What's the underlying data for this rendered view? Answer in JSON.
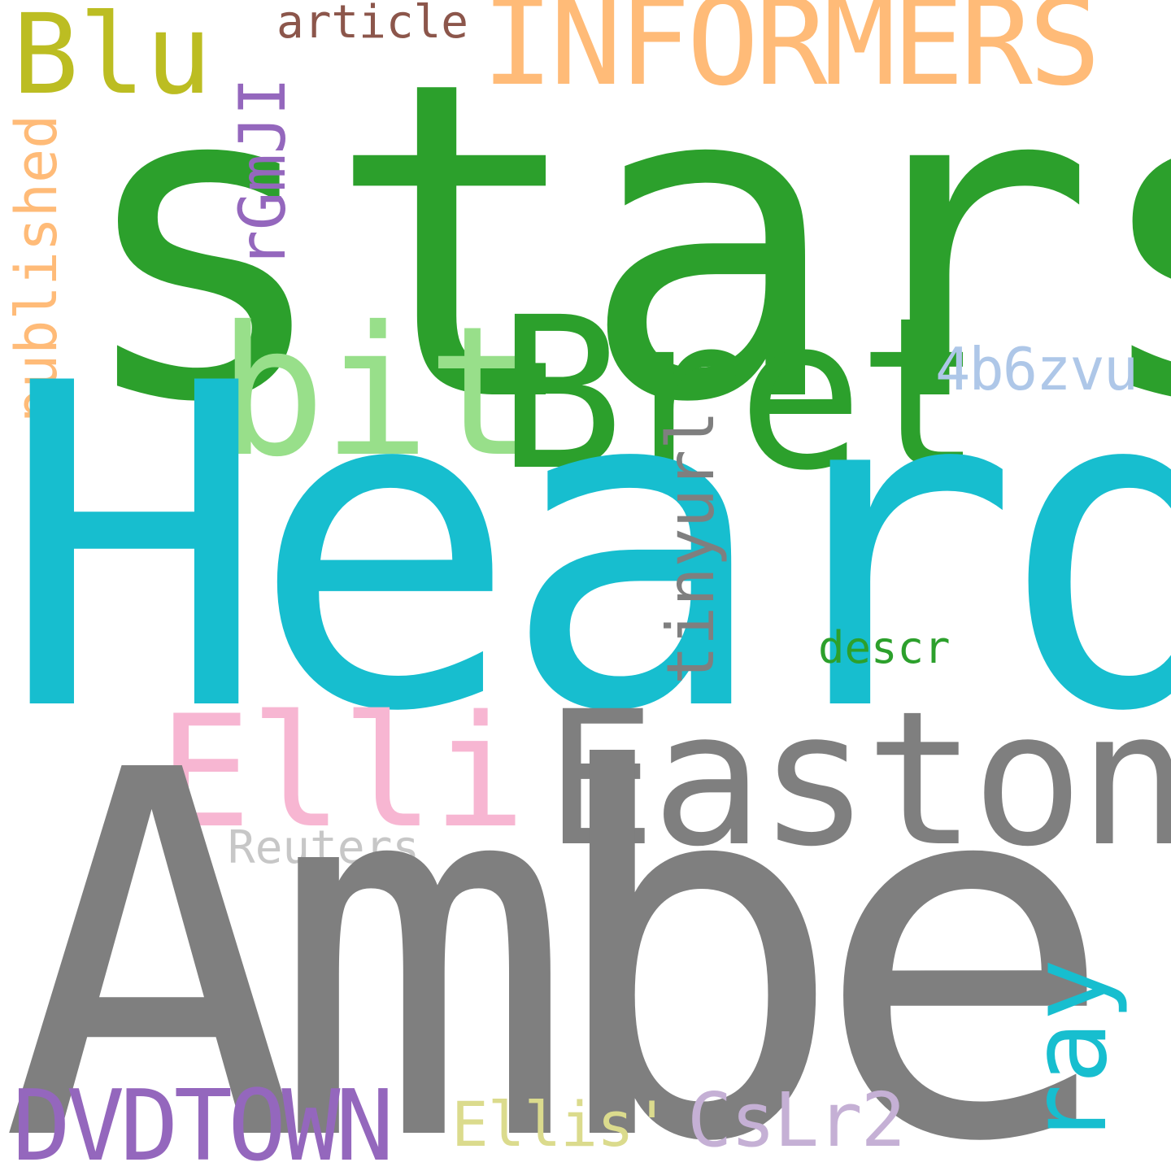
{
  "word_cloud": {
    "words": {
      "stars": {
        "text": "stars",
        "color": "#2ca02c"
      },
      "heard": {
        "text": "Heard",
        "color": "#17becf"
      },
      "amber": {
        "text": "Amber",
        "color": "#7f7f7f"
      },
      "informers": {
        "text": "INFORMERS",
        "color": "#ffbb78"
      },
      "blu": {
        "text": "Blu",
        "color": "#bcbd22"
      },
      "article": {
        "text": "article",
        "color": "#8c564b"
      },
      "published": {
        "text": "published",
        "color": "#ffbb78"
      },
      "rgmjl": {
        "text": "rGmJI",
        "color": "#9467bd"
      },
      "bit": {
        "text": "bit",
        "color": "#98df8a"
      },
      "bret": {
        "text": "Bret",
        "color": "#2ca02c"
      },
      "b6zvu": {
        "text": "4b6zvu",
        "color": "#aec7e8"
      },
      "tinyurl": {
        "text": "tinyurl",
        "color": "#7f7f7f"
      },
      "descr": {
        "text": "descr",
        "color": "#2ca02c"
      },
      "elli": {
        "text": "Elli",
        "color": "#f7b6d2"
      },
      "easton": {
        "text": "Easton",
        "color": "#7f7f7f"
      },
      "reuters": {
        "text": "Reuters",
        "color": "#c7c7c7"
      },
      "ray": {
        "text": "ray",
        "color": "#17becf"
      },
      "dvdtown": {
        "text": "DVDTOWN",
        "color": "#9467bd"
      },
      "ellis": {
        "text": "Ellis'",
        "color": "#dbdb8d"
      },
      "cslr2": {
        "text": "CsLr2",
        "color": "#c5b0d5"
      }
    }
  }
}
